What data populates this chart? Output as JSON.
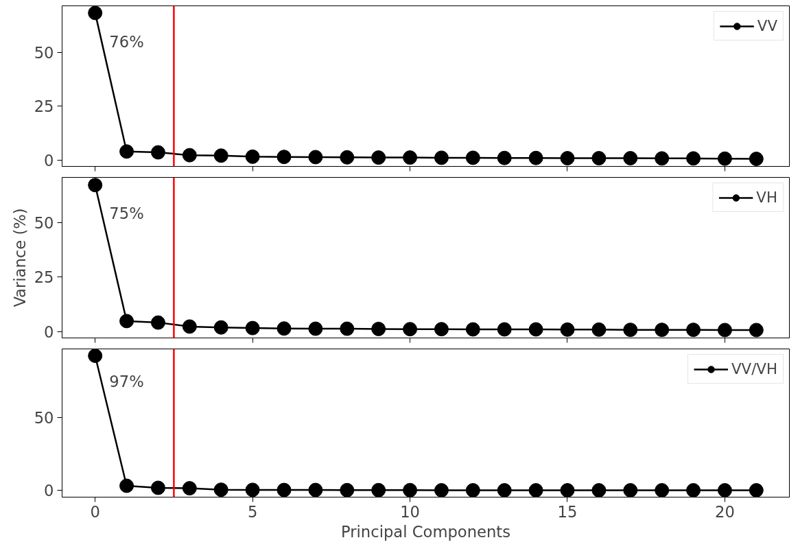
{
  "chart_data": [
    {
      "type": "line",
      "x": [
        0,
        1,
        2,
        3,
        4,
        5,
        6,
        7,
        8,
        9,
        10,
        11,
        12,
        13,
        14,
        15,
        16,
        17,
        18,
        19,
        20,
        21
      ],
      "xlim": [
        -1.05,
        22.05
      ],
      "xticks": [
        0,
        5,
        10,
        15,
        20
      ],
      "ylim": [
        -2.9,
        71.5
      ],
      "yticks": [
        0,
        25,
        50
      ],
      "tick_labels": "y",
      "marker": "circle",
      "legend": "top right",
      "annotations": [
        "76%"
      ],
      "ref_lines": [
        {
          "axis": "x",
          "value": 2.5,
          "color": "#ff0000"
        }
      ],
      "series": [
        {
          "name": "VV",
          "color": "#000000",
          "values": [
            68.2,
            4,
            3.6,
            2.3,
            2.1,
            1.6,
            1.5,
            1.4,
            1.3,
            1.2,
            1.2,
            1.1,
            1.1,
            1.0,
            1.0,
            0.9,
            0.9,
            0.9,
            0.8,
            0.8,
            0.7,
            0.6
          ]
        }
      ]
    },
    {
      "type": "line",
      "x": [
        0,
        1,
        2,
        3,
        4,
        5,
        6,
        7,
        8,
        9,
        10,
        11,
        12,
        13,
        14,
        15,
        16,
        17,
        18,
        19,
        20,
        21
      ],
      "xlim": [
        -1.05,
        22.05
      ],
      "xticks": [
        0,
        5,
        10,
        15,
        20
      ],
      "ylim": [
        -2.7,
        70.5
      ],
      "yticks": [
        0,
        25,
        50
      ],
      "tick_labels": "y",
      "marker": "circle",
      "legend": "top right",
      "ylabel": "Variance (%)",
      "annotations": [
        "75%"
      ],
      "ref_lines": [
        {
          "axis": "x",
          "value": 2.5,
          "color": "#ff0000"
        }
      ],
      "series": [
        {
          "name": "VH",
          "color": "#000000",
          "values": [
            67,
            5,
            4.3,
            2.5,
            2.1,
            1.8,
            1.6,
            1.5,
            1.5,
            1.4,
            1.3,
            1.3,
            1.2,
            1.2,
            1.2,
            1.1,
            1.1,
            1.0,
            1.0,
            1.0,
            0.9,
            0.9
          ]
        }
      ]
    },
    {
      "type": "line",
      "x": [
        0,
        1,
        2,
        3,
        4,
        5,
        6,
        7,
        8,
        9,
        10,
        11,
        12,
        13,
        14,
        15,
        16,
        17,
        18,
        19,
        20,
        21
      ],
      "xlim": [
        -1.05,
        22.05
      ],
      "xticks": [
        0,
        5,
        10,
        15,
        20
      ],
      "ylim": [
        -4.6,
        97.2
      ],
      "yticks": [
        0,
        50
      ],
      "marker": "circle",
      "legend": "top right",
      "xlabel": "Principal Components",
      "annotations": [
        "97%"
      ],
      "ref_lines": [
        {
          "axis": "x",
          "value": 2.5,
          "color": "#ff0000"
        }
      ],
      "series": [
        {
          "name": "VV/VH",
          "color": "#000000",
          "values": [
            92.5,
            3.2,
            1.8,
            1.5,
            0.5,
            0.4,
            0.3,
            0.3,
            0.2,
            0.2,
            0.2,
            0.1,
            0.1,
            0.1,
            0.1,
            0.1,
            0.1,
            0.1,
            0.1,
            0.1,
            0.1,
            0.1
          ]
        }
      ]
    }
  ]
}
